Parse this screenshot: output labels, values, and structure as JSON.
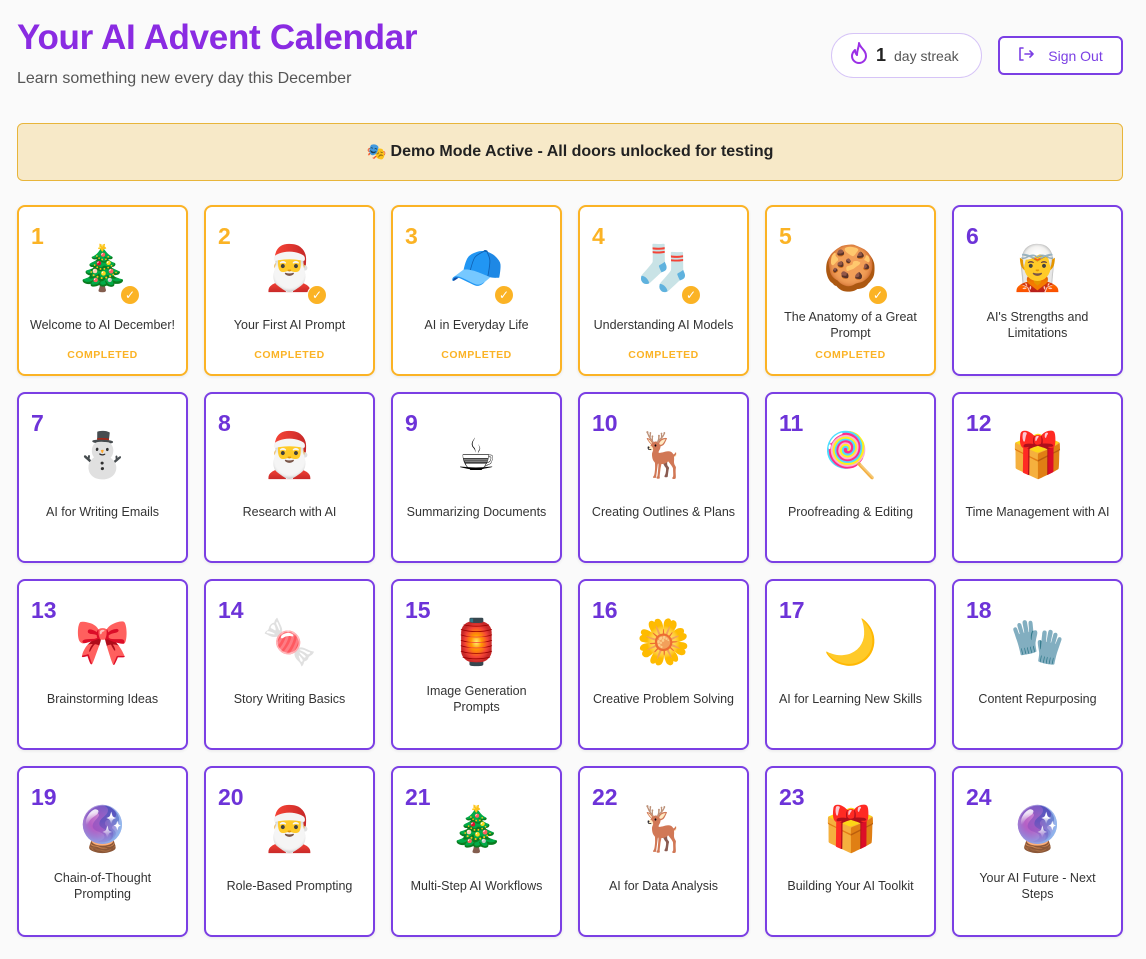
{
  "header": {
    "title": "Your AI Advent Calendar",
    "subtitle": "Learn something new every day this December"
  },
  "streak": {
    "icon": "flame-icon",
    "count": "1",
    "label": "day streak"
  },
  "signout": {
    "icon": "sign-out-icon",
    "label": "Sign Out"
  },
  "banner": {
    "icon": "🎭",
    "text": "Demo Mode Active - All doors unlocked for testing"
  },
  "colors": {
    "accent": "#8a2be2",
    "completed": "#fbb325",
    "banner_bg": "#f7e9c8"
  },
  "status_label": "COMPLETED",
  "days": [
    {
      "day": "1",
      "title": "Welcome to AI December!",
      "icon": "🎄",
      "completed": true
    },
    {
      "day": "2",
      "title": "Your First AI Prompt",
      "icon": "🎅",
      "completed": true
    },
    {
      "day": "3",
      "title": "AI in Everyday Life",
      "icon": "🧢",
      "completed": true
    },
    {
      "day": "4",
      "title": "Understanding AI Models",
      "icon": "🧦",
      "completed": true
    },
    {
      "day": "5",
      "title": "The Anatomy of a Great Prompt",
      "icon": "🍪",
      "completed": true
    },
    {
      "day": "6",
      "title": "AI's Strengths and Limitations",
      "icon": "🧝",
      "completed": false
    },
    {
      "day": "7",
      "title": "AI for Writing Emails",
      "icon": "⛄",
      "completed": false
    },
    {
      "day": "8",
      "title": "Research with AI",
      "icon": "🎅",
      "completed": false
    },
    {
      "day": "9",
      "title": "Summarizing Documents",
      "icon": "☕",
      "completed": false
    },
    {
      "day": "10",
      "title": "Creating Outlines & Plans",
      "icon": "🦌",
      "completed": false
    },
    {
      "day": "11",
      "title": "Proofreading & Editing",
      "icon": "🍭",
      "completed": false
    },
    {
      "day": "12",
      "title": "Time Management with AI",
      "icon": "🎁",
      "completed": false
    },
    {
      "day": "13",
      "title": "Brainstorming Ideas",
      "icon": "🎀",
      "completed": false
    },
    {
      "day": "14",
      "title": "Story Writing Basics",
      "icon": "🍬",
      "completed": false
    },
    {
      "day": "15",
      "title": "Image Generation Prompts",
      "icon": "🏮",
      "completed": false
    },
    {
      "day": "16",
      "title": "Creative Problem Solving",
      "icon": "🌼",
      "completed": false
    },
    {
      "day": "17",
      "title": "AI for Learning New Skills",
      "icon": "🌙",
      "completed": false
    },
    {
      "day": "18",
      "title": "Content Repurposing",
      "icon": "🧤",
      "completed": false
    },
    {
      "day": "19",
      "title": "Chain-of-Thought Prompting",
      "icon": "🔮",
      "completed": false
    },
    {
      "day": "20",
      "title": "Role-Based Prompting",
      "icon": "🎅",
      "completed": false
    },
    {
      "day": "21",
      "title": "Multi-Step AI Workflows",
      "icon": "🎄",
      "completed": false
    },
    {
      "day": "22",
      "title": "AI for Data Analysis",
      "icon": "🦌",
      "completed": false
    },
    {
      "day": "23",
      "title": "Building Your AI Toolkit",
      "icon": "🎁",
      "completed": false
    },
    {
      "day": "24",
      "title": "Your AI Future - Next Steps",
      "icon": "🔮",
      "completed": false
    }
  ]
}
